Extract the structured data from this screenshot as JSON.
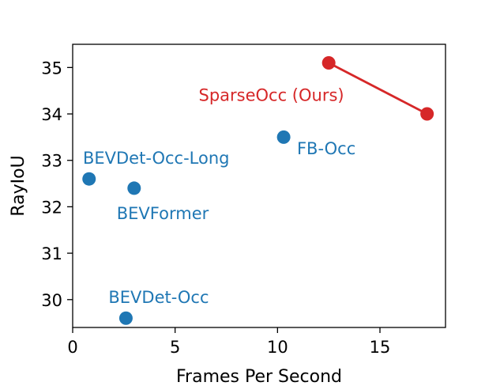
{
  "chart_data": {
    "type": "scatter",
    "xlabel": "Frames Per Second",
    "ylabel": "RayIoU",
    "xlim": [
      0,
      18.2
    ],
    "ylim": [
      29.4,
      35.5
    ],
    "xticks": [
      0,
      5,
      10,
      15
    ],
    "yticks": [
      30,
      31,
      32,
      33,
      34,
      35
    ],
    "grid": false,
    "colors": {
      "blue": "#1f77b4",
      "red": "#d62728"
    },
    "points": [
      {
        "label": "BEVDet-Occ-Long",
        "x": 0.8,
        "y": 32.6,
        "color": "#1f77b4",
        "label_x": 0.5,
        "label_y": 33.05,
        "anchor": "start"
      },
      {
        "label": "BEVFormer",
        "x": 3.0,
        "y": 32.4,
        "color": "#1f77b4",
        "label_x": 2.15,
        "label_y": 31.85,
        "anchor": "start"
      },
      {
        "label": "FB-Occ",
        "x": 10.3,
        "y": 33.5,
        "color": "#1f77b4",
        "label_x": 10.95,
        "label_y": 33.25,
        "anchor": "start"
      },
      {
        "label": "BEVDet-Occ",
        "x": 2.6,
        "y": 29.6,
        "color": "#1f77b4",
        "label_x": 1.75,
        "label_y": 30.05,
        "anchor": "start"
      }
    ],
    "series": [
      {
        "name": "SparseOcc (Ours)",
        "color": "#d62728",
        "x": [
          12.5,
          17.3
        ],
        "y": [
          35.1,
          34.0
        ],
        "label_x": 6.15,
        "label_y": 34.4
      }
    ]
  }
}
